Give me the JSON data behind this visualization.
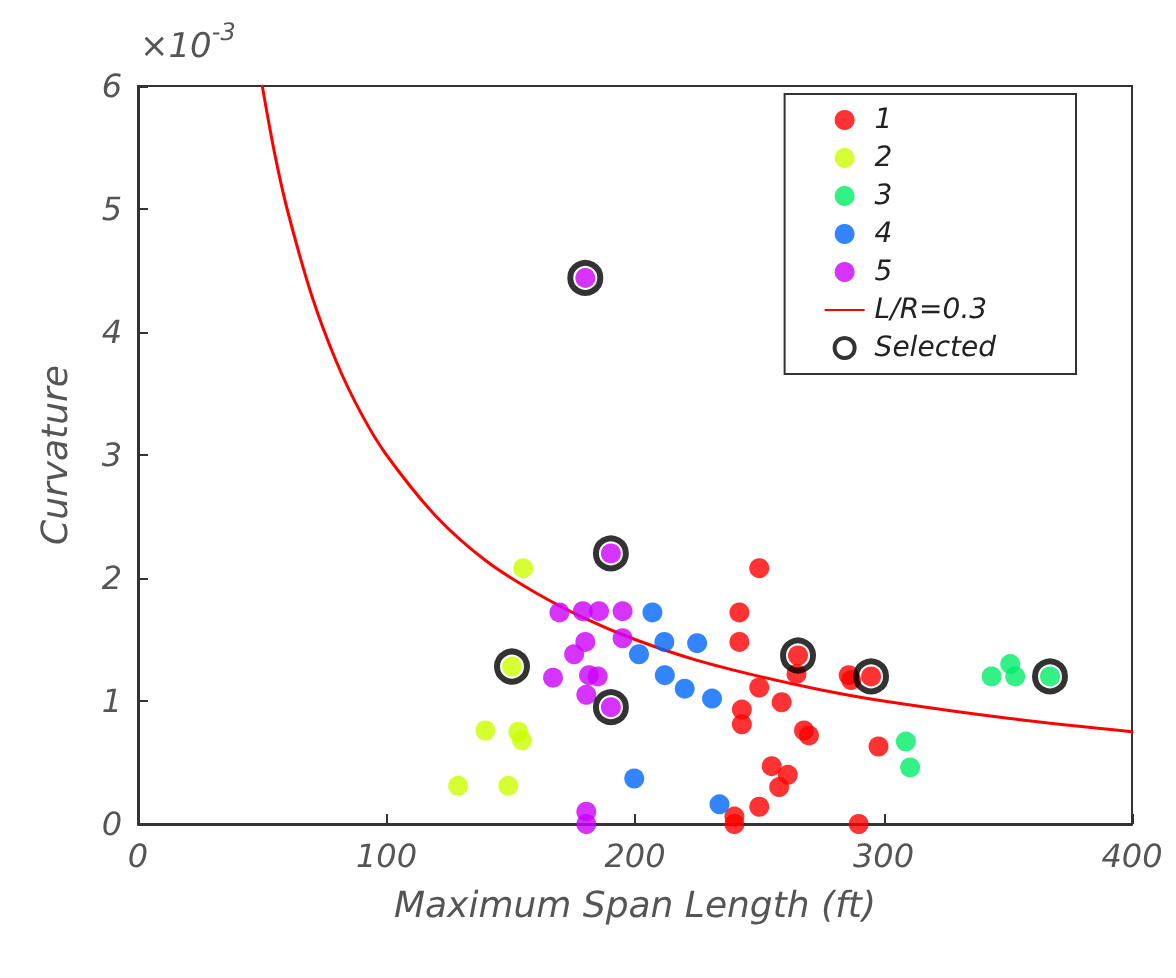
{
  "chart_data": {
    "type": "scatter",
    "xlabel": "Maximum Span Length (ft)",
    "ylabel": "Curvature",
    "annotations": [
      "×10$^{-3}$"
    ],
    "xlim": [
      0,
      400
    ],
    "ylim": [
      0,
      6
    ],
    "xticks": [
      0,
      100,
      200,
      300,
      400
    ],
    "yticks": [
      0,
      1,
      2,
      3,
      4,
      5,
      6
    ],
    "grid": false,
    "legend": "top right",
    "marker": "circle",
    "series": [
      {
        "name": "1",
        "color": "#ff0000",
        "x": [
          250,
          242,
          242,
          265.6,
          250,
          259,
          243,
          243,
          268,
          270,
          255,
          261.5,
          258,
          250,
          240,
          240,
          290,
          286,
          265,
          298,
          287,
          295
        ],
        "values": [
          2.08,
          1.72,
          1.48,
          1.37,
          1.11,
          0.99,
          0.93,
          0.81,
          0.76,
          0.72,
          0.47,
          0.4,
          0.3,
          0.14,
          0.06,
          0,
          0,
          1.21,
          1.22,
          0.63,
          1.17,
          1.2
        ]
      },
      {
        "name": "2",
        "color": "#ccff00",
        "x": [
          155,
          150.5,
          139.8,
          153,
          154.5,
          128.8,
          149
        ],
        "values": [
          2.08,
          1.28,
          0.76,
          0.75,
          0.68,
          0.31,
          0.31
        ]
      },
      {
        "name": "3",
        "color": "#00ee66",
        "x": [
          343.5,
          351,
          353,
          367,
          309,
          310.7
        ],
        "values": [
          1.2,
          1.3,
          1.2,
          1.2,
          0.67,
          0.46
        ]
      },
      {
        "name": "4",
        "color": "#0066ff",
        "x": [
          207,
          201.6,
          211.8,
          225,
          212,
          220,
          231,
          199.7,
          234
        ],
        "values": [
          1.72,
          1.38,
          1.48,
          1.47,
          1.21,
          1.1,
          1.02,
          0.37,
          0.16
        ]
      },
      {
        "name": "5",
        "color": "#cc00ff",
        "x": [
          180,
          190.3,
          169.6,
          179,
          185.5,
          195,
          180,
          175.5,
          195,
          167,
          181.5,
          185,
          180.4,
          190.3,
          180.4,
          180.4
        ],
        "values": [
          4.44,
          2.2,
          1.72,
          1.73,
          1.73,
          1.73,
          1.48,
          1.38,
          1.51,
          1.19,
          1.21,
          1.2,
          1.05,
          0.95,
          0.1,
          0
        ]
      },
      {
        "name": "L/R=0.3",
        "type": "line",
        "marker": "none",
        "line_style": "solid",
        "color": "#ff0000",
        "x": [
          50,
          55,
          60,
          70,
          80,
          90,
          100,
          120,
          140,
          160,
          180,
          200,
          225,
          250,
          275,
          300,
          350,
          400
        ],
        "values": [
          6,
          5.45,
          5,
          4.29,
          3.75,
          3.33,
          3,
          2.5,
          2.14,
          1.88,
          1.67,
          1.5,
          1.33,
          1.2,
          1.09,
          1,
          0.86,
          0.75
        ]
      },
      {
        "name": "Selected",
        "color": "#000000",
        "marker": "circle",
        "x": [
          180,
          190.3,
          150.5,
          190.3,
          265.6,
          295,
          367
        ],
        "values": [
          4.44,
          2.2,
          1.28,
          0.95,
          1.37,
          1.2,
          1.2
        ]
      }
    ]
  }
}
